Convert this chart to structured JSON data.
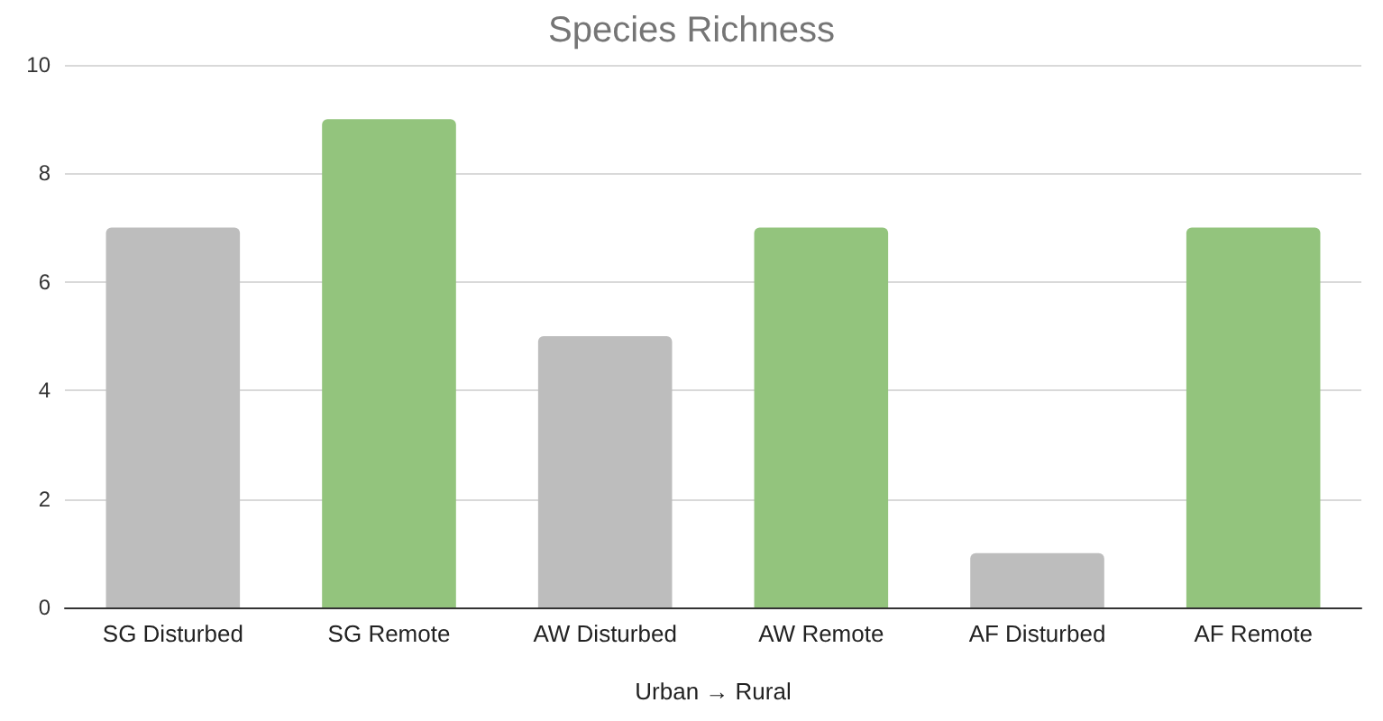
{
  "chart_data": {
    "type": "bar",
    "title": "Species Richness",
    "xlabel": "Urban → Rural",
    "categories": [
      "SG Disturbed",
      "SG Remote",
      "AW Disturbed",
      "AW Remote",
      "AF Disturbed",
      "AF Remote"
    ],
    "values": [
      7,
      9,
      5,
      7,
      1,
      7
    ],
    "colors": [
      "#bdbdbd",
      "#93c47d",
      "#bdbdbd",
      "#93c47d",
      "#bdbdbd",
      "#93c47d"
    ],
    "ylim": [
      0,
      10
    ],
    "yticks": [
      0,
      2,
      4,
      6,
      8,
      10
    ],
    "grid": "y"
  }
}
